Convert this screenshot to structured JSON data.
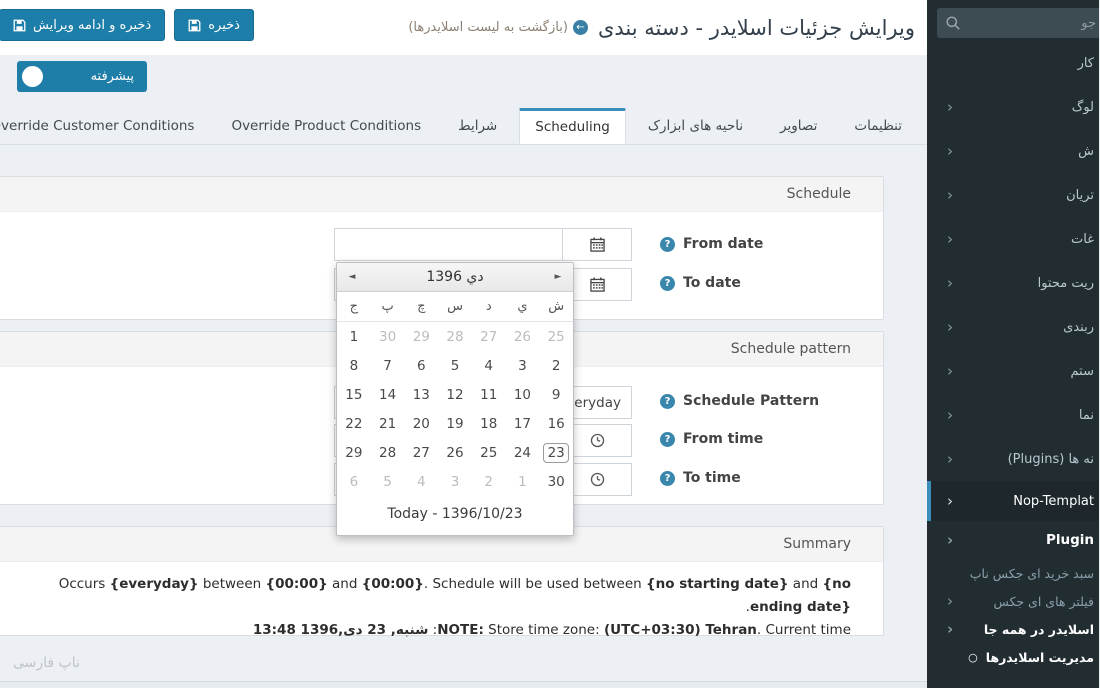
{
  "colors": {
    "accent": "#3c8dbc",
    "button_blue": "#1d7ea9",
    "sidebar_bg": "#222d32",
    "help_icon": "#3a87ad"
  },
  "header": {
    "title": "ویرایش جزئیات اسلایدر - دسته بندی",
    "back_link": "(بازگشت به لیست اسلایدرها)",
    "save_continue_label": "ذخیره و ادامه ویرایش",
    "save_label": "ذخیره"
  },
  "advanced_toggle": {
    "label": "پیشرفته"
  },
  "tabs": [
    {
      "name": "settings",
      "label": "تنظیمات",
      "active": false
    },
    {
      "name": "images",
      "label": "تصاویر",
      "active": false
    },
    {
      "name": "widget-zones",
      "label": "ناحیه های ابزارک",
      "active": false
    },
    {
      "name": "scheduling",
      "label": "Scheduling",
      "active": true
    },
    {
      "name": "conditions",
      "label": "شرایط",
      "active": false
    },
    {
      "name": "override-product-conditions",
      "label": "Override Product Conditions",
      "active": false
    },
    {
      "name": "override-customer-conditions",
      "label": "Override Customer Conditions",
      "active": false
    }
  ],
  "schedule_panel": {
    "title": "Schedule",
    "from_date_label": "From date",
    "to_date_label": "To date",
    "from_date_value": "",
    "to_date_value": ""
  },
  "pattern_panel": {
    "title": "Schedule pattern",
    "pattern_label": "Schedule Pattern",
    "pattern_value": "everyday",
    "from_time_label": "From time",
    "to_time_label": "To time",
    "from_time_value": "",
    "to_time_value": ""
  },
  "calendar": {
    "month_title": "دي 1396",
    "prev_arrow": "◄",
    "next_arrow": "►",
    "day_headers": [
      "ش",
      "ي",
      "د",
      "س",
      "چ",
      "پ",
      "ج"
    ],
    "weeks": [
      [
        {
          "d": "25",
          "muted": true
        },
        {
          "d": "26",
          "muted": true
        },
        {
          "d": "27",
          "muted": true
        },
        {
          "d": "28",
          "muted": true
        },
        {
          "d": "29",
          "muted": true
        },
        {
          "d": "30",
          "muted": true
        },
        {
          "d": "1"
        }
      ],
      [
        {
          "d": "2"
        },
        {
          "d": "3"
        },
        {
          "d": "4"
        },
        {
          "d": "5"
        },
        {
          "d": "6"
        },
        {
          "d": "7"
        },
        {
          "d": "8"
        }
      ],
      [
        {
          "d": "9"
        },
        {
          "d": "10"
        },
        {
          "d": "11"
        },
        {
          "d": "12"
        },
        {
          "d": "13"
        },
        {
          "d": "14"
        },
        {
          "d": "15"
        }
      ],
      [
        {
          "d": "16"
        },
        {
          "d": "17"
        },
        {
          "d": "18"
        },
        {
          "d": "19"
        },
        {
          "d": "20"
        },
        {
          "d": "21"
        },
        {
          "d": "22"
        }
      ],
      [
        {
          "d": "23",
          "today": true
        },
        {
          "d": "24"
        },
        {
          "d": "25"
        },
        {
          "d": "26"
        },
        {
          "d": "27"
        },
        {
          "d": "28"
        },
        {
          "d": "29"
        }
      ],
      [
        {
          "d": "30"
        },
        {
          "d": "1",
          "muted": true
        },
        {
          "d": "2",
          "muted": true
        },
        {
          "d": "3",
          "muted": true
        },
        {
          "d": "4",
          "muted": true
        },
        {
          "d": "5",
          "muted": true
        },
        {
          "d": "6",
          "muted": true
        }
      ]
    ],
    "today_label": "Today - 1396/10/23"
  },
  "summary_panel": {
    "title": "Summary",
    "line1": [
      {
        "t": "Occurs "
      },
      {
        "t": "{everyday}",
        "b": true
      },
      {
        "t": " between "
      },
      {
        "t": "{00:00}",
        "b": true
      },
      {
        "t": " and "
      },
      {
        "t": "{00:00}",
        "b": true
      },
      {
        "t": ". Schedule will be used between "
      },
      {
        "t": "{no starting date}",
        "b": true
      },
      {
        "t": " and "
      },
      {
        "t": "{no ending date}",
        "b": true
      },
      {
        "t": "."
      }
    ],
    "line2": [
      {
        "t": "NOTE:",
        "b": true
      },
      {
        "t": " Store time zone: "
      },
      {
        "t": "(UTC+03:30) Tehran",
        "b": true
      },
      {
        "t": ". Current time: "
      },
      {
        "t": "شنبه, 23 دی,1396 13:48",
        "b": true
      }
    ]
  },
  "sidebar": {
    "search_placeholder_visible": "جو",
    "items": [
      {
        "name": "dashboard",
        "label": "کار",
        "chevron": false
      },
      {
        "name": "catalog",
        "label": "لوگ",
        "chevron": true
      },
      {
        "name": "sales",
        "label": "ش",
        "chevron": true
      },
      {
        "name": "customers",
        "label": "تریان",
        "chevron": true
      },
      {
        "name": "promotions",
        "label": "غات",
        "chevron": true
      },
      {
        "name": "content-management",
        "label": "ریت محتوا",
        "chevron": true
      },
      {
        "name": "configuration",
        "label": "ربندی",
        "chevron": true
      },
      {
        "name": "system",
        "label": "ستم",
        "chevron": true
      },
      {
        "name": "help",
        "label": "نما",
        "chevron": true
      },
      {
        "name": "plugins",
        "label": "نه ها (Plugins)",
        "chevron": true
      },
      {
        "name": "nop-templates",
        "label": "Nop-Templat",
        "chevron": true,
        "active": true
      },
      {
        "name": "nop-templates-plugins",
        "label": "Plugin",
        "chevron": true,
        "boldrow": true
      },
      {
        "name": "ajax-cart",
        "label": "سبد خرید ای جکس ناپ",
        "sub": true
      },
      {
        "name": "ajax-filters",
        "label": "فیلتر های ای جکس",
        "chevron": true,
        "sub": true
      },
      {
        "name": "anywhere-slider",
        "label": "اسلایدر در همه جا",
        "chevron": true,
        "sub": true,
        "bright": true
      },
      {
        "name": "manage-sliders",
        "label": "مدیریت اسلایدرها",
        "sub": true,
        "bright": true,
        "bullet": true
      }
    ]
  },
  "footer": {
    "text": "ناپ فارسی"
  }
}
